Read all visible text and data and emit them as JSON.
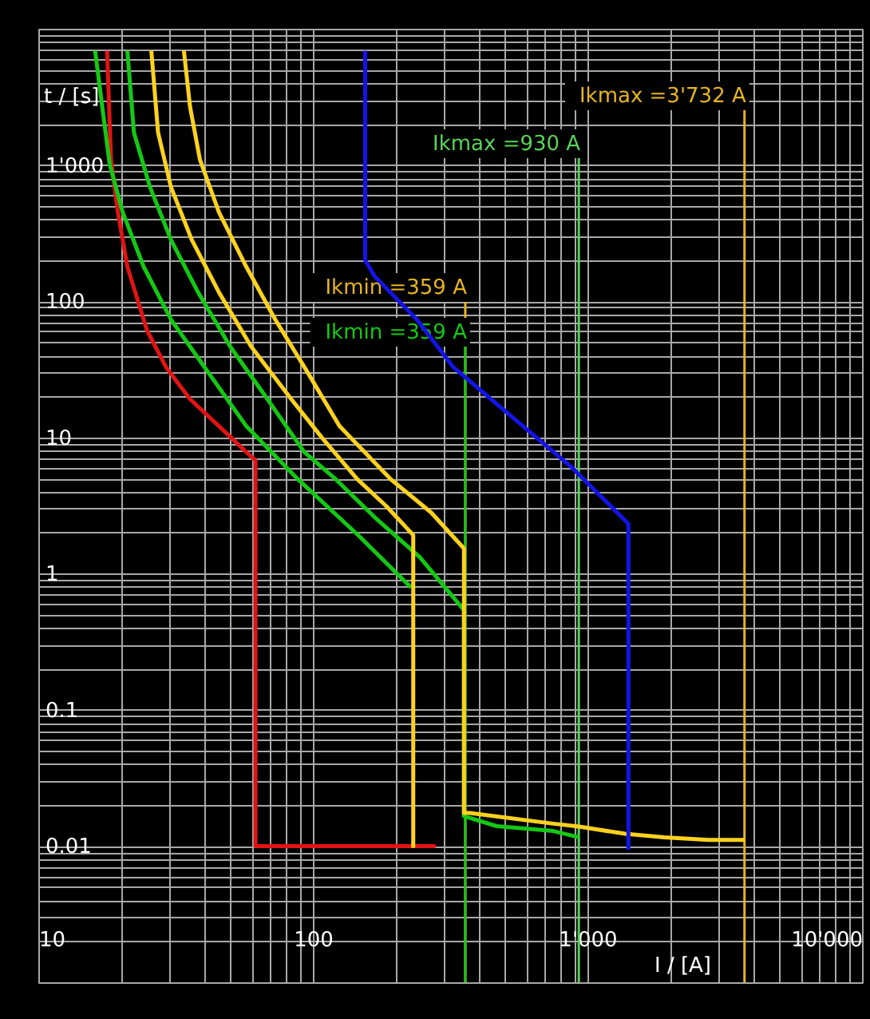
{
  "chart_data": {
    "type": "line",
    "xlabel": "I / [A]",
    "ylabel": "t / [s]",
    "log": "xy",
    "grid": true,
    "xlim": [
      10,
      10000
    ],
    "ylim": [
      0.001,
      10000
    ],
    "xticks": [
      10,
      100,
      {
        "value": 1000,
        "label": "1'000"
      },
      {
        "value": 10000,
        "label": "10'000"
      }
    ],
    "yticks": [
      0.01,
      0.1,
      1,
      10,
      100,
      {
        "value": 1000,
        "label": "1'000"
      }
    ],
    "series": [
      {
        "color": "#e01414",
        "x": [
          17.8,
          18.4,
          19.5,
          21.1,
          24.9,
          29.2,
          35.7,
          45.5,
          57.2,
          61.8,
          61.8,
          280
        ],
        "values": [
          6900,
          1090,
          449,
          179,
          60.8,
          32.7,
          19.1,
          12.1,
          7.8,
          6.8,
          0.01,
          0.01
        ]
      },
      {
        "color": "#14c814",
        "x": [
          16.1,
          17.1,
          18.2,
          20.3,
          24.2,
          30.4,
          41.5,
          57.2,
          88.1,
          146,
          228
        ],
        "values": [
          6900,
          2670,
          1010,
          449,
          179,
          73.5,
          30.2,
          12.1,
          4.94,
          1.92,
          0.79
        ]
      },
      {
        "color": "#14c814",
        "x": [
          21.1,
          22.3,
          25.5,
          30.4,
          38.2,
          50.0,
          68.3,
          92.9,
          121,
          168,
          245,
          355,
          355,
          467,
          750,
          930
        ],
        "values": [
          6900,
          1730,
          691,
          283,
          116,
          46.4,
          19.1,
          7.82,
          4.94,
          2.59,
          1.32,
          0.54,
          0.0166,
          0.014,
          0.0129,
          0.0116
        ]
      },
      {
        "color": "#ffd21e",
        "x": [
          25.8,
          27.3,
          30.4,
          36.2,
          45.5,
          59.6,
          83.4,
          109,
          145,
          185,
          232,
          232
        ],
        "values": [
          6900,
          1730,
          691,
          283,
          116,
          46.4,
          19.1,
          9.71,
          4.94,
          3.13,
          1.92,
          0.0097
        ]
      },
      {
        "color": "#ffd21e",
        "x": [
          33.9,
          35.7,
          38.8,
          45.5,
          57.2,
          72.9,
          95.5,
          125,
          192,
          270,
          355,
          355,
          372,
          750,
          930,
          1370,
          1900,
          2760,
          3732
        ],
        "values": [
          6900,
          2670,
          1090,
          449,
          179,
          73.5,
          30.2,
          12.1,
          4.94,
          2.8,
          1.53,
          0.0175,
          0.0175,
          0.0146,
          0.0139,
          0.0123,
          0.0116,
          0.0111,
          0.0111
        ]
      },
      {
        "color": "#1414e6",
        "x": [
          155,
          155,
          168,
          239,
          325,
          881,
          968,
          1201,
          1410,
          1410
        ],
        "values": [
          6900,
          200,
          152,
          73.5,
          32.7,
          5.97,
          4.94,
          3.21,
          2.32,
          0.0094
        ]
      }
    ],
    "ref_lines": [
      {
        "axis": "x",
        "value": 3732,
        "label": "Ikmax =3'732 A",
        "color": "#e6b422"
      },
      {
        "axis": "x",
        "value": 930,
        "label": "Ikmax =930 A",
        "color": "#5ad25a"
      },
      {
        "axis": "x",
        "value": 359,
        "label": "Ikmin =359 A",
        "color": "#e6b422"
      },
      {
        "axis": "x",
        "value": 359,
        "label": "Ikmin =359 A",
        "color": "#14c814"
      }
    ]
  }
}
